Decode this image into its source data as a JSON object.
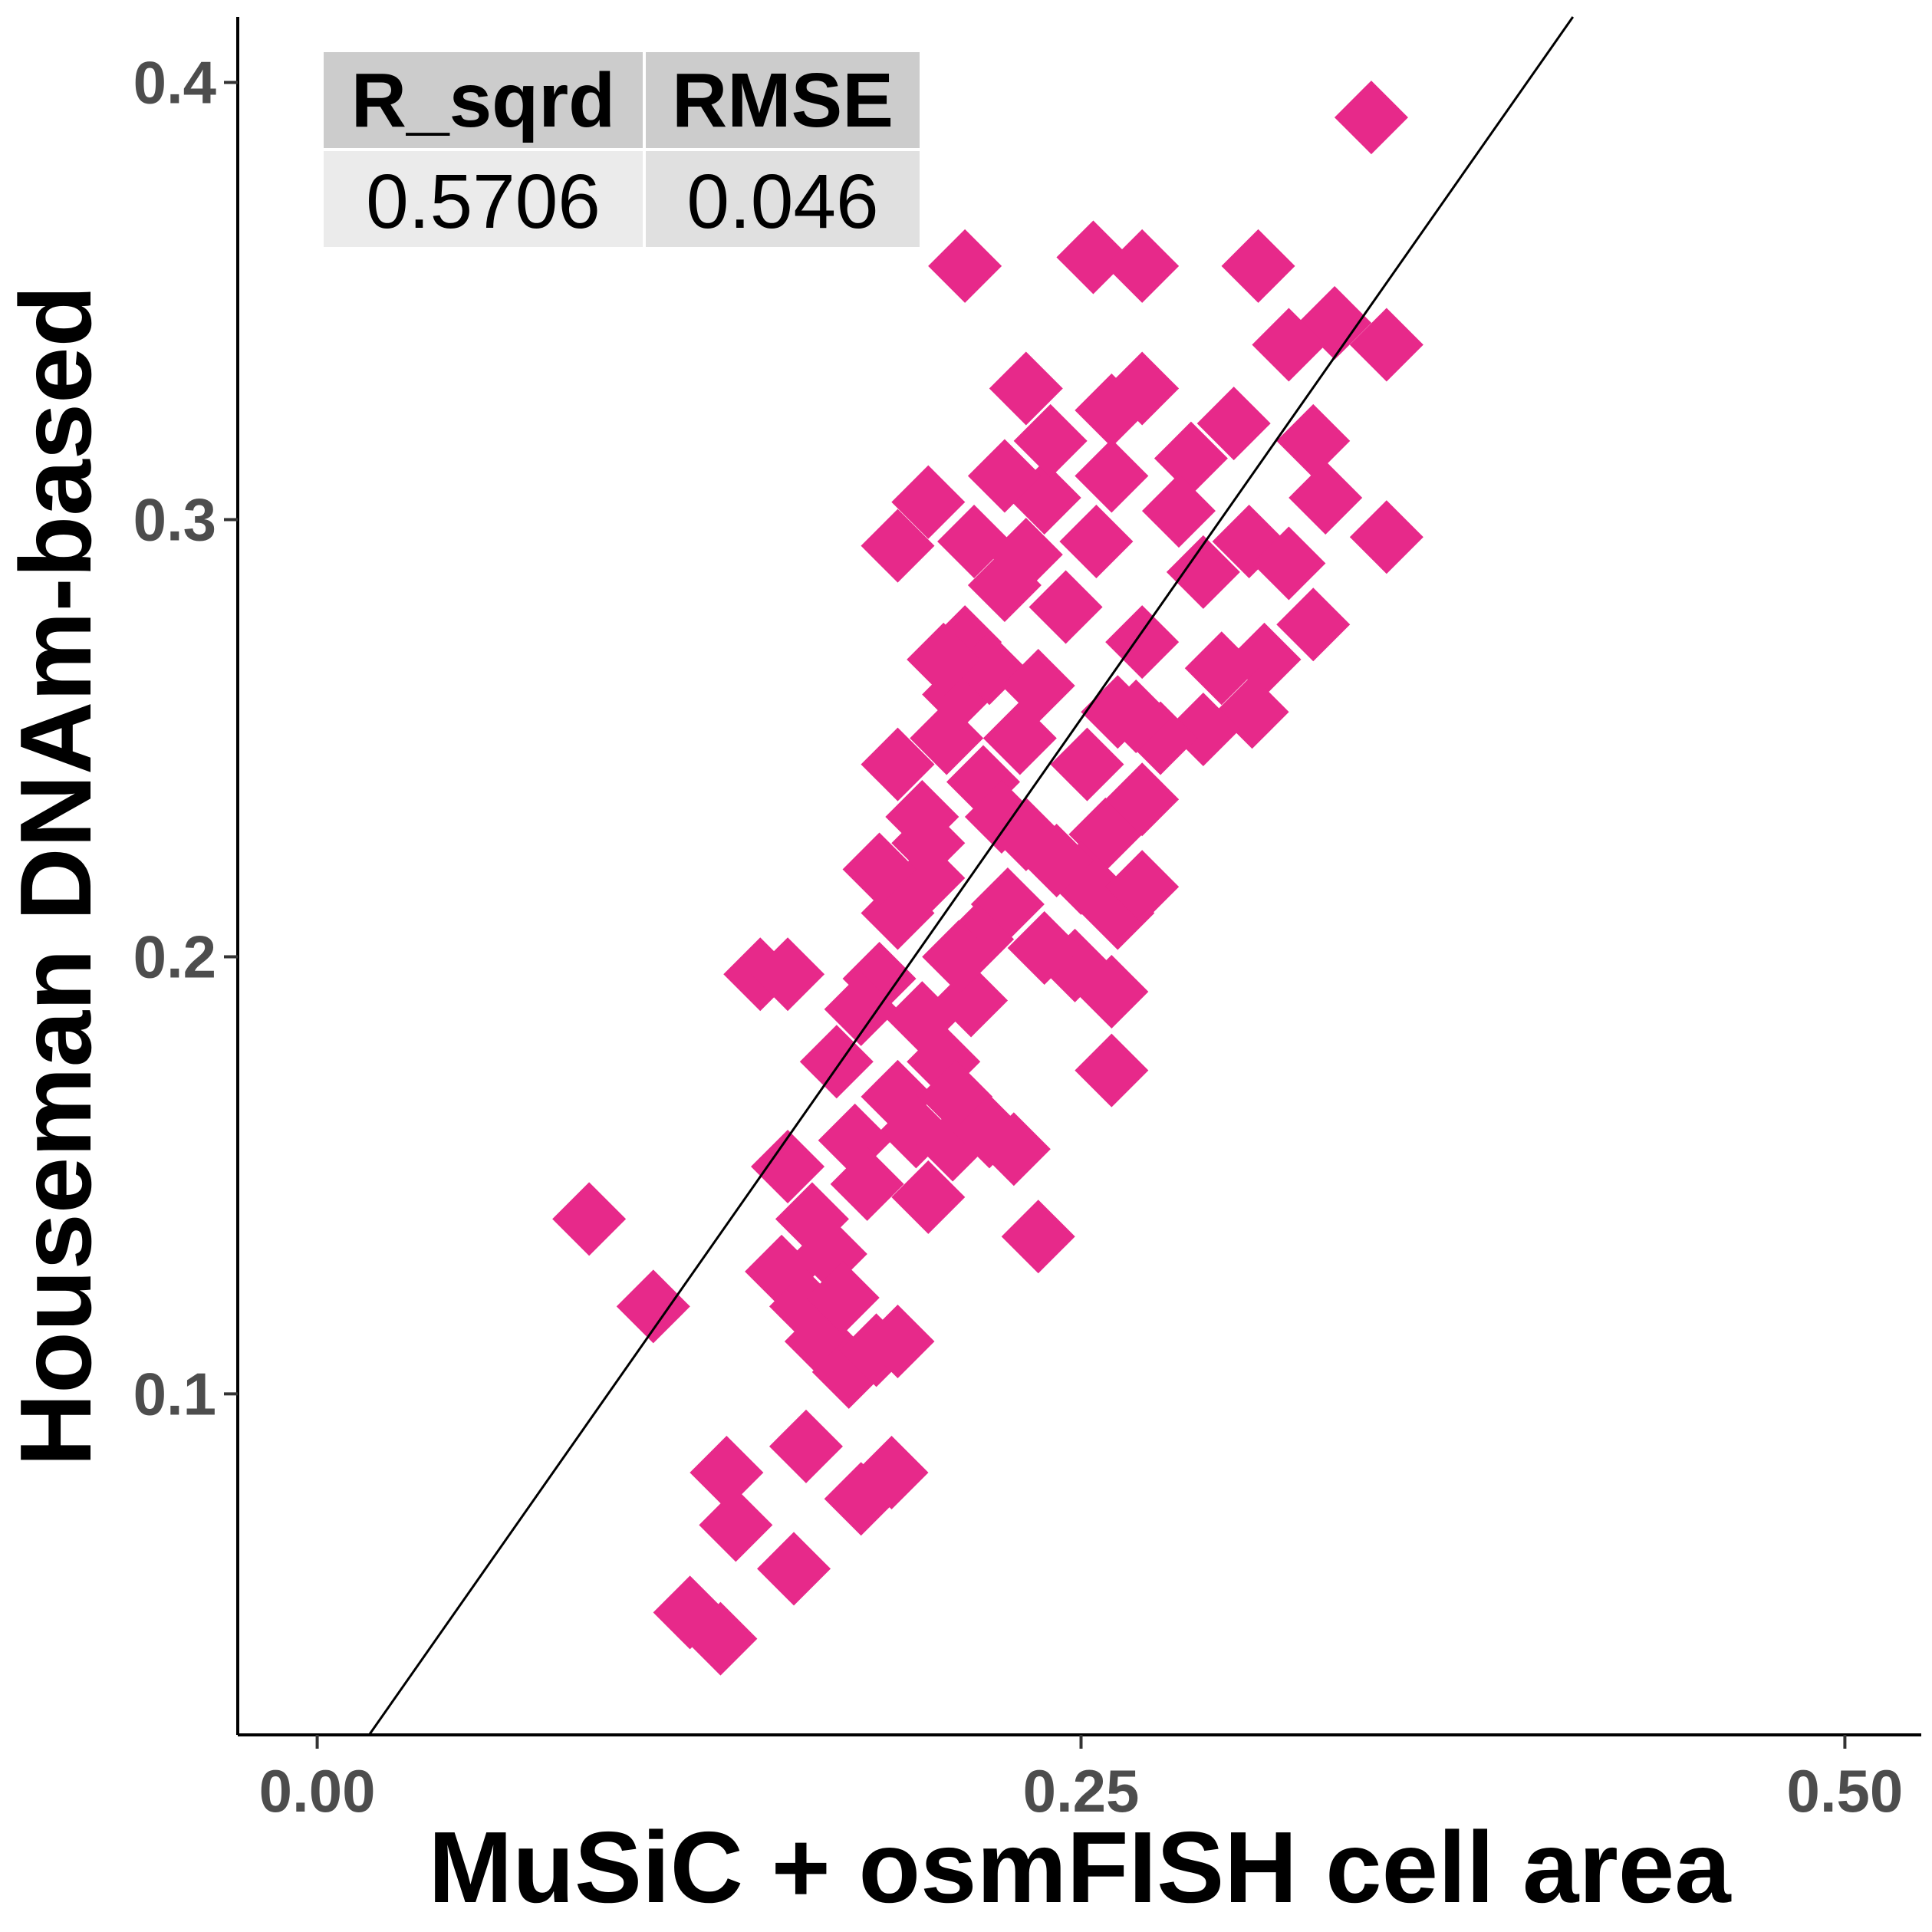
{
  "chart_data": {
    "type": "scatter",
    "xlabel": "MuSiC + osmFISH cell area",
    "ylabel": "Houseman DNAm-based",
    "xlim": [
      -0.026,
      0.525
    ],
    "ylim": [
      0.022,
      0.415
    ],
    "x_ticks": [
      0.0,
      0.25,
      0.5
    ],
    "x_tick_labels": [
      "0.00",
      "0.25",
      "0.50"
    ],
    "y_ticks": [
      0.1,
      0.2,
      0.3,
      0.4
    ],
    "y_tick_labels": [
      "0.1",
      "0.2",
      "0.3",
      "0.4"
    ],
    "grid": false,
    "marker": "diamond",
    "colors": {
      "points": "#e7298a",
      "line": "#000000",
      "table_header": "#cccccc",
      "table_body_1": "#ebebeb",
      "table_body_2": "#e0e0e0"
    },
    "fit_line": {
      "x": [
        0.017,
        0.411
      ],
      "y": [
        0.022,
        0.415
      ]
    },
    "stats_table": {
      "headers": [
        "R_sqrd",
        "RMSE"
      ],
      "values": [
        "0.5706",
        "0.046"
      ]
    },
    "points": [
      [
        0.089,
        0.14
      ],
      [
        0.11,
        0.12
      ],
      [
        0.122,
        0.05
      ],
      [
        0.132,
        0.044
      ],
      [
        0.134,
        0.082
      ],
      [
        0.137,
        0.07
      ],
      [
        0.156,
        0.06
      ],
      [
        0.16,
        0.088
      ],
      [
        0.145,
        0.196
      ],
      [
        0.154,
        0.196
      ],
      [
        0.154,
        0.152
      ],
      [
        0.162,
        0.14
      ],
      [
        0.152,
        0.128
      ],
      [
        0.16,
        0.12
      ],
      [
        0.165,
        0.112
      ],
      [
        0.168,
        0.132
      ],
      [
        0.174,
        0.105
      ],
      [
        0.183,
        0.11
      ],
      [
        0.19,
        0.112
      ],
      [
        0.178,
        0.076
      ],
      [
        0.188,
        0.082
      ],
      [
        0.184,
        0.195
      ],
      [
        0.178,
        0.188
      ],
      [
        0.19,
        0.21
      ],
      [
        0.2,
        0.218
      ],
      [
        0.184,
        0.22
      ],
      [
        0.19,
        0.168
      ],
      [
        0.196,
        0.16
      ],
      [
        0.205,
        0.176
      ],
      [
        0.209,
        0.168
      ],
      [
        0.2,
        0.145
      ],
      [
        0.208,
        0.157
      ],
      [
        0.22,
        0.16
      ],
      [
        0.228,
        0.156
      ],
      [
        0.19,
        0.244
      ],
      [
        0.198,
        0.232
      ],
      [
        0.206,
        0.25
      ],
      [
        0.21,
        0.26
      ],
      [
        0.218,
        0.24
      ],
      [
        0.2,
        0.226
      ],
      [
        0.224,
        0.232
      ],
      [
        0.212,
        0.272
      ],
      [
        0.22,
        0.266
      ],
      [
        0.205,
        0.268
      ],
      [
        0.23,
        0.25
      ],
      [
        0.236,
        0.262
      ],
      [
        0.225,
        0.285
      ],
      [
        0.215,
        0.295
      ],
      [
        0.232,
        0.292
      ],
      [
        0.245,
        0.28
      ],
      [
        0.238,
        0.305
      ],
      [
        0.225,
        0.31
      ],
      [
        0.24,
        0.318
      ],
      [
        0.232,
        0.33
      ],
      [
        0.26,
        0.325
      ],
      [
        0.26,
        0.31
      ],
      [
        0.255,
        0.295
      ],
      [
        0.27,
        0.33
      ],
      [
        0.2,
        0.304
      ],
      [
        0.19,
        0.294
      ],
      [
        0.212,
        0.358
      ],
      [
        0.254,
        0.36
      ],
      [
        0.27,
        0.358
      ],
      [
        0.308,
        0.358
      ],
      [
        0.345,
        0.392
      ],
      [
        0.35,
        0.34
      ],
      [
        0.333,
        0.345
      ],
      [
        0.318,
        0.34
      ],
      [
        0.326,
        0.318
      ],
      [
        0.33,
        0.305
      ],
      [
        0.35,
        0.296
      ],
      [
        0.3,
        0.322
      ],
      [
        0.286,
        0.314
      ],
      [
        0.282,
        0.302
      ],
      [
        0.29,
        0.288
      ],
      [
        0.305,
        0.295
      ],
      [
        0.318,
        0.29
      ],
      [
        0.326,
        0.276
      ],
      [
        0.31,
        0.268
      ],
      [
        0.296,
        0.266
      ],
      [
        0.306,
        0.256
      ],
      [
        0.29,
        0.252
      ],
      [
        0.276,
        0.25
      ],
      [
        0.268,
        0.255
      ],
      [
        0.27,
        0.272
      ],
      [
        0.262,
        0.256
      ],
      [
        0.252,
        0.244
      ],
      [
        0.258,
        0.228
      ],
      [
        0.27,
        0.236
      ],
      [
        0.25,
        0.218
      ],
      [
        0.262,
        0.21
      ],
      [
        0.27,
        0.216
      ],
      [
        0.248,
        0.198
      ],
      [
        0.26,
        0.192
      ],
      [
        0.238,
        0.202
      ],
      [
        0.242,
        0.222
      ],
      [
        0.232,
        0.228
      ],
      [
        0.226,
        0.212
      ],
      [
        0.214,
        0.19
      ],
      [
        0.216,
        0.204
      ],
      [
        0.26,
        0.174
      ],
      [
        0.236,
        0.136
      ],
      [
        0.17,
        0.176
      ],
      [
        0.176,
        0.158
      ],
      [
        0.18,
        0.148
      ],
      [
        0.172,
        0.122
      ],
      [
        0.198,
        0.186
      ],
      [
        0.21,
        0.2
      ]
    ]
  }
}
